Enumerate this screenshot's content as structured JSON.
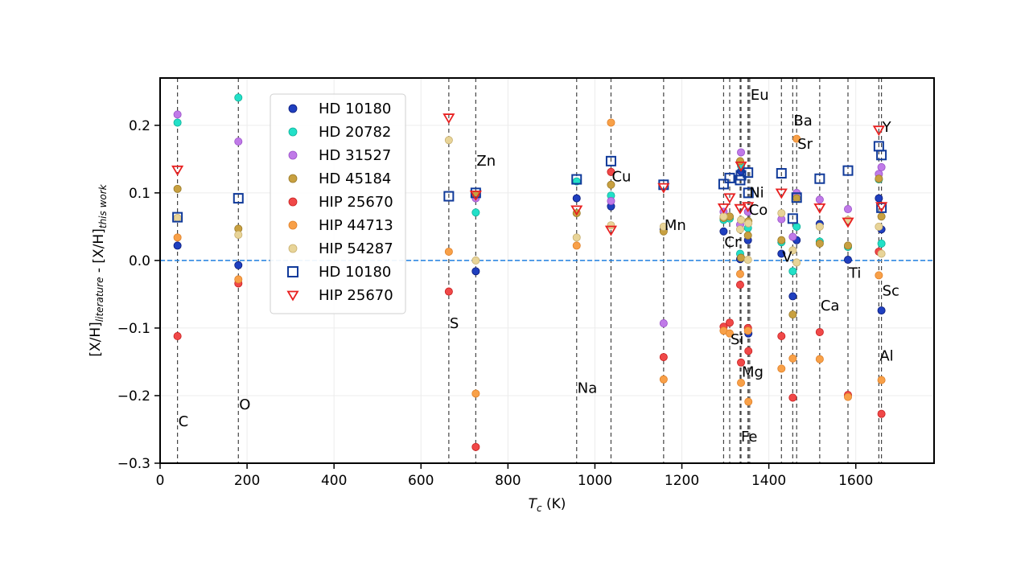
{
  "chart_data": {
    "type": "scatter",
    "xlabel": "T_c (K)",
    "ylabel": "[X/H]_literature - [X/H]_this work",
    "xlim": [
      0,
      1780
    ],
    "ylim": [
      -0.3,
      0.27
    ],
    "xticks": [
      0,
      200,
      400,
      600,
      800,
      1000,
      1200,
      1400,
      1600
    ],
    "yticks": [
      -0.3,
      -0.2,
      -0.1,
      0.0,
      0.1,
      0.2
    ],
    "x_tick_labels": [
      "0",
      "200",
      "400",
      "600",
      "800",
      "1000",
      "1200",
      "1400",
      "1600"
    ],
    "y_tick_labels": [
      "−0.3",
      "−0.2",
      "−0.1",
      "0.0",
      "0.1",
      "0.2"
    ],
    "zero_line": true,
    "legend_position": "upper-left",
    "elements": [
      {
        "name": "C",
        "tc": 40,
        "label_x": 40,
        "label_y": -0.245
      },
      {
        "name": "O",
        "tc": 180,
        "label_x": 180,
        "label_y": -0.22
      },
      {
        "name": "S",
        "tc": 664,
        "label_x": 664,
        "label_y": -0.1
      },
      {
        "name": "Zn",
        "tc": 726,
        "label_x": 726,
        "label_y": 0.14
      },
      {
        "name": "Na",
        "tc": 958,
        "label_x": 958,
        "label_y": -0.196
      },
      {
        "name": "Cu",
        "tc": 1037,
        "label_x": 1037,
        "label_y": 0.117
      },
      {
        "name": "Mn",
        "tc": 1158,
        "label_x": 1158,
        "label_y": 0.045
      },
      {
        "name": "Si",
        "tc": 1310,
        "label_x": 1310,
        "label_y": -0.124
      },
      {
        "name": "Cr",
        "tc": 1296,
        "label_x": 1296,
        "label_y": 0.02
      },
      {
        "name": "Mg",
        "tc": 1336,
        "label_x": 1336,
        "label_y": -0.172
      },
      {
        "name": "Fe",
        "tc": 1334,
        "label_x": 1334,
        "label_y": -0.268
      },
      {
        "name": "Co",
        "tc": 1352,
        "label_x": 1352,
        "label_y": 0.068
      },
      {
        "name": "Ni",
        "tc": 1353,
        "label_x": 1353,
        "label_y": 0.093
      },
      {
        "name": "Eu",
        "tc": 1356,
        "label_x": 1356,
        "label_y": 0.238
      },
      {
        "name": "V",
        "tc": 1429,
        "label_x": 1429,
        "label_y": -0.002
      },
      {
        "name": "Ba",
        "tc": 1455,
        "label_x": 1455,
        "label_y": 0.2
      },
      {
        "name": "Sr",
        "tc": 1464,
        "label_x": 1464,
        "label_y": 0.165
      },
      {
        "name": "Ca",
        "tc": 1517,
        "label_x": 1517,
        "label_y": -0.074
      },
      {
        "name": "Ti",
        "tc": 1582,
        "label_x": 1582,
        "label_y": -0.026
      },
      {
        "name": "Y",
        "tc": 1659,
        "label_x": 1659,
        "label_y": 0.19
      },
      {
        "name": "Sc",
        "tc": 1659,
        "label_x": 1659,
        "label_y": -0.052
      },
      {
        "name": "Al",
        "tc": 1653,
        "label_x": 1653,
        "label_y": -0.148
      }
    ],
    "vlines": [
      40,
      180,
      664,
      726,
      958,
      1037,
      1158,
      1296,
      1310,
      1334,
      1336,
      1352,
      1353,
      1356,
      1429,
      1455,
      1464,
      1517,
      1582,
      1653,
      1659
    ],
    "series": [
      {
        "name": "HD 10180",
        "marker": "circle",
        "color": "#1f3fbf",
        "edge": "#0a1a7a",
        "points": [
          [
            40,
            0.022
          ],
          [
            180,
            -0.007
          ],
          [
            726,
            -0.016
          ],
          [
            958,
            0.092
          ],
          [
            1037,
            0.08
          ],
          [
            1158,
            0.046
          ],
          [
            1296,
            0.043
          ],
          [
            1334,
            0.002
          ],
          [
            1336,
            0.132
          ],
          [
            1352,
            0.03
          ],
          [
            1353,
            -0.108
          ],
          [
            1429,
            0.01
          ],
          [
            1455,
            -0.053
          ],
          [
            1464,
            0.03
          ],
          [
            1517,
            0.054
          ],
          [
            1582,
            0.001
          ],
          [
            1653,
            0.092
          ],
          [
            1659,
            0.046
          ],
          [
            1659,
            -0.074
          ]
        ]
      },
      {
        "name": "HD 20782",
        "marker": "circle",
        "color": "#22e0c8",
        "edge": "#10b098",
        "points": [
          [
            40,
            0.204
          ],
          [
            180,
            0.241
          ],
          [
            726,
            0.071
          ],
          [
            958,
            0.117
          ],
          [
            1037,
            0.096
          ],
          [
            1296,
            0.06
          ],
          [
            1310,
            0.062
          ],
          [
            1334,
            0.01
          ],
          [
            1336,
            0.14
          ],
          [
            1352,
            0.048
          ],
          [
            1429,
            0.027
          ],
          [
            1455,
            -0.016
          ],
          [
            1464,
            0.05
          ],
          [
            1517,
            0.028
          ],
          [
            1582,
            0.02
          ],
          [
            1653,
            0.12
          ],
          [
            1659,
            0.025
          ]
        ]
      },
      {
        "name": "HD 31527",
        "marker": "circle",
        "color": "#c07ae8",
        "edge": "#9a50c8",
        "points": [
          [
            40,
            0.216
          ],
          [
            180,
            0.176
          ],
          [
            726,
            0.092
          ],
          [
            1037,
            0.088
          ],
          [
            1158,
            -0.093
          ],
          [
            1296,
            0.072
          ],
          [
            1334,
            0.053
          ],
          [
            1336,
            0.16
          ],
          [
            1352,
            0.072
          ],
          [
            1429,
            0.061
          ],
          [
            1455,
            0.035
          ],
          [
            1464,
            0.1
          ],
          [
            1517,
            0.09
          ],
          [
            1582,
            0.076
          ],
          [
            1653,
            0.128
          ],
          [
            1659,
            0.138
          ]
        ]
      },
      {
        "name": "HD 45184",
        "marker": "circle",
        "color": "#c8a040",
        "edge": "#9a7a28",
        "points": [
          [
            40,
            0.106
          ],
          [
            180,
            0.047
          ],
          [
            726,
            0.097
          ],
          [
            958,
            0.07
          ],
          [
            1037,
            0.112
          ],
          [
            1158,
            0.043
          ],
          [
            1296,
            0.063
          ],
          [
            1310,
            0.065
          ],
          [
            1334,
            0.147
          ],
          [
            1336,
            0.004
          ],
          [
            1352,
            0.037
          ],
          [
            1353,
            0.058
          ],
          [
            1429,
            0.03
          ],
          [
            1455,
            -0.08
          ],
          [
            1464,
            0.092
          ],
          [
            1517,
            0.025
          ],
          [
            1582,
            0.022
          ],
          [
            1653,
            0.121
          ],
          [
            1659,
            0.065
          ]
        ]
      },
      {
        "name": "HIP 25670",
        "marker": "circle",
        "color": "#f04848",
        "edge": "#c82020",
        "points": [
          [
            40,
            -0.112
          ],
          [
            180,
            -0.034
          ],
          [
            664,
            -0.046
          ],
          [
            726,
            -0.276
          ],
          [
            1037,
            0.131
          ],
          [
            1158,
            -0.143
          ],
          [
            1296,
            -0.098
          ],
          [
            1310,
            -0.092
          ],
          [
            1334,
            -0.036
          ],
          [
            1336,
            -0.151
          ],
          [
            1352,
            -0.1
          ],
          [
            1353,
            -0.134
          ],
          [
            1429,
            -0.112
          ],
          [
            1455,
            -0.203
          ],
          [
            1517,
            -0.106
          ],
          [
            1582,
            -0.199
          ],
          [
            1653,
            0.013
          ],
          [
            1659,
            -0.227
          ]
        ]
      },
      {
        "name": "HIP 44713",
        "marker": "circle",
        "color": "#f8a048",
        "edge": "#e08028",
        "points": [
          [
            40,
            0.034
          ],
          [
            180,
            -0.028
          ],
          [
            664,
            0.013
          ],
          [
            726,
            -0.197
          ],
          [
            958,
            0.022
          ],
          [
            1037,
            0.204
          ],
          [
            1158,
            -0.176
          ],
          [
            1296,
            -0.104
          ],
          [
            1310,
            -0.108
          ],
          [
            1334,
            -0.02
          ],
          [
            1336,
            -0.181
          ],
          [
            1352,
            -0.104
          ],
          [
            1353,
            -0.209
          ],
          [
            1429,
            -0.16
          ],
          [
            1455,
            -0.145
          ],
          [
            1464,
            0.18
          ],
          [
            1517,
            -0.146
          ],
          [
            1582,
            -0.202
          ],
          [
            1653,
            -0.022
          ],
          [
            1659,
            -0.177
          ]
        ]
      },
      {
        "name": "HIP 54287",
        "marker": "circle",
        "color": "#e8d498",
        "edge": "#c8b070",
        "points": [
          [
            40,
            0.063
          ],
          [
            180,
            0.038
          ],
          [
            664,
            0.178
          ],
          [
            726,
            0.0
          ],
          [
            958,
            0.034
          ],
          [
            1037,
            0.052
          ],
          [
            1158,
            0.05
          ],
          [
            1296,
            0.065
          ],
          [
            1334,
            0.046
          ],
          [
            1336,
            0.06
          ],
          [
            1352,
            0.001
          ],
          [
            1353,
            0.055
          ],
          [
            1429,
            0.07
          ],
          [
            1455,
            0.015
          ],
          [
            1464,
            -0.003
          ],
          [
            1517,
            0.05
          ],
          [
            1582,
            0.06
          ],
          [
            1653,
            0.05
          ],
          [
            1659,
            0.01
          ]
        ]
      },
      {
        "name": "HD 10180",
        "marker": "square",
        "color": "#103a9a",
        "points": [
          [
            40,
            0.064
          ],
          [
            180,
            0.092
          ],
          [
            664,
            0.095
          ],
          [
            726,
            0.1
          ],
          [
            958,
            0.12
          ],
          [
            1037,
            0.147
          ],
          [
            1158,
            0.112
          ],
          [
            1296,
            0.113
          ],
          [
            1310,
            0.122
          ],
          [
            1334,
            0.119
          ],
          [
            1336,
            0.126
          ],
          [
            1352,
            0.13
          ],
          [
            1353,
            0.1
          ],
          [
            1429,
            0.129
          ],
          [
            1455,
            0.062
          ],
          [
            1464,
            0.093
          ],
          [
            1517,
            0.121
          ],
          [
            1582,
            0.133
          ],
          [
            1653,
            0.169
          ],
          [
            1659,
            0.156
          ],
          [
            1659,
            0.078
          ]
        ]
      },
      {
        "name": "HIP 25670",
        "marker": "triangle",
        "color": "#e82020",
        "points": [
          [
            40,
            0.134
          ],
          [
            664,
            0.211
          ],
          [
            726,
            0.097
          ],
          [
            958,
            0.075
          ],
          [
            1037,
            0.045
          ],
          [
            1158,
            0.108
          ],
          [
            1296,
            0.078
          ],
          [
            1310,
            0.093
          ],
          [
            1334,
            0.077
          ],
          [
            1336,
            0.14
          ],
          [
            1352,
            0.08
          ],
          [
            1429,
            0.1
          ],
          [
            1517,
            0.078
          ],
          [
            1582,
            0.057
          ],
          [
            1653,
            0.193
          ],
          [
            1659,
            0.08
          ]
        ]
      }
    ]
  }
}
